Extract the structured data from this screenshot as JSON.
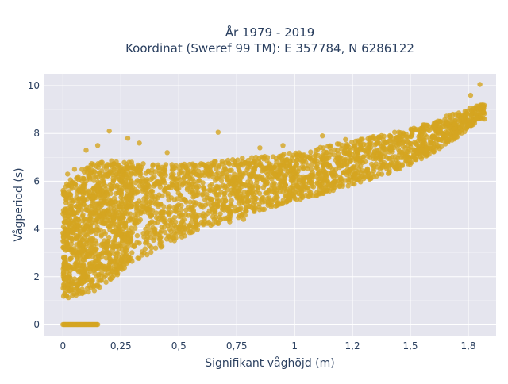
{
  "title_line1": "År 1979 - 2019",
  "title_line2": "Koordinat (Sweref 99 TM): E 357784, N 6286122",
  "colors": {
    "marker": "#D4A520",
    "plot_bg": "#E5E5EE",
    "grid": "#ffffff",
    "text": "#2a3f5f"
  },
  "chart_data": {
    "type": "scatter",
    "title": "År 1979 - 2019 / Koordinat (Sweref 99 TM): E 357784, N 6286122",
    "xlabel": "Signifikant våghöjd (m)",
    "ylabel": "Vågperiod (s)",
    "xlim": [
      -0.08,
      1.87
    ],
    "ylim": [
      -0.5,
      10.5
    ],
    "grid": true,
    "legend": "none",
    "x_ticks": [
      0,
      0.25,
      0.5,
      0.75,
      1,
      1.25,
      1.5,
      1.75
    ],
    "x_tick_labels": [
      "0",
      "0,25",
      "0,5",
      "0,75",
      "1",
      "1,2",
      "1,5",
      "1,8"
    ],
    "y_ticks": [
      0,
      2,
      4,
      6,
      8,
      10
    ],
    "y_tick_labels": [
      "0",
      "2",
      "4",
      "6",
      "8",
      "10"
    ],
    "band_lower": [
      [
        0,
        1.1
      ],
      [
        0.1,
        1.2
      ],
      [
        0.2,
        1.8
      ],
      [
        0.3,
        2.6
      ],
      [
        0.4,
        3.1
      ],
      [
        0.5,
        3.6
      ],
      [
        0.6,
        4.0
      ],
      [
        0.7,
        4.3
      ],
      [
        0.8,
        4.6
      ],
      [
        0.9,
        4.9
      ],
      [
        1.0,
        5.2
      ],
      [
        1.1,
        5.4
      ],
      [
        1.2,
        5.7
      ],
      [
        1.3,
        6.0
      ],
      [
        1.4,
        6.3
      ],
      [
        1.5,
        6.7
      ],
      [
        1.6,
        7.2
      ],
      [
        1.7,
        7.8
      ],
      [
        1.8,
        8.6
      ]
    ],
    "band_upper": [
      [
        0,
        5.8
      ],
      [
        0.1,
        6.7
      ],
      [
        0.2,
        6.9
      ],
      [
        0.3,
        6.8
      ],
      [
        0.4,
        6.7
      ],
      [
        0.5,
        6.7
      ],
      [
        0.6,
        6.8
      ],
      [
        0.7,
        6.9
      ],
      [
        0.8,
        7.0
      ],
      [
        0.9,
        7.1
      ],
      [
        1.0,
        7.2
      ],
      [
        1.1,
        7.4
      ],
      [
        1.2,
        7.6
      ],
      [
        1.3,
        7.8
      ],
      [
        1.4,
        8.0
      ],
      [
        1.5,
        8.2
      ],
      [
        1.6,
        8.5
      ],
      [
        1.7,
        8.9
      ],
      [
        1.8,
        9.2
      ]
    ],
    "zero_period_x_range": [
      0,
      0.15
    ],
    "outliers": [
      {
        "x": 0.2,
        "y": 8.1
      },
      {
        "x": 0.28,
        "y": 7.8
      },
      {
        "x": 0.33,
        "y": 7.6
      },
      {
        "x": 0.67,
        "y": 8.05
      },
      {
        "x": 1.12,
        "y": 7.9
      },
      {
        "x": 1.22,
        "y": 7.75
      },
      {
        "x": 1.45,
        "y": 8.05
      },
      {
        "x": 1.52,
        "y": 8.15
      },
      {
        "x": 1.6,
        "y": 8.3
      },
      {
        "x": 1.68,
        "y": 8.6
      },
      {
        "x": 1.8,
        "y": 10.05
      },
      {
        "x": 1.76,
        "y": 9.6
      },
      {
        "x": 0.02,
        "y": 6.3
      },
      {
        "x": 0.05,
        "y": 6.5
      },
      {
        "x": 0.1,
        "y": 7.3
      },
      {
        "x": 0.15,
        "y": 7.5
      },
      {
        "x": 0.45,
        "y": 7.2
      },
      {
        "x": 0.85,
        "y": 7.4
      },
      {
        "x": 0.95,
        "y": 7.5
      },
      {
        "x": 1.33,
        "y": 7.6
      },
      {
        "x": 0.4,
        "y": 3.2
      },
      {
        "x": 0.55,
        "y": 3.9
      },
      {
        "x": 0.72,
        "y": 4.3
      },
      {
        "x": 0.78,
        "y": 4.4
      }
    ]
  }
}
